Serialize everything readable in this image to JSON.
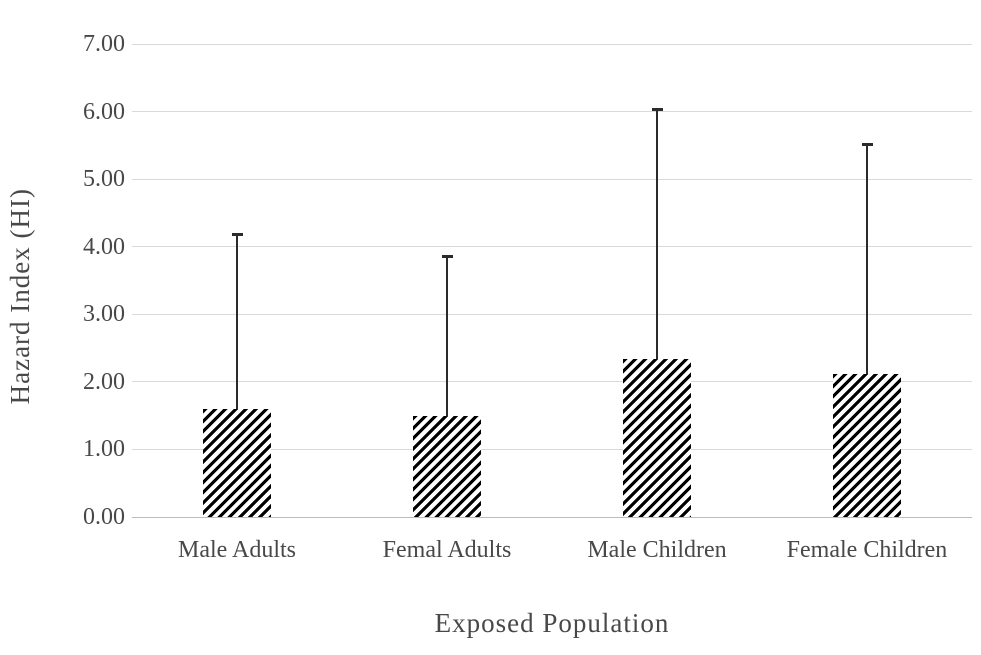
{
  "figure": {
    "background": "#ffffff"
  },
  "chart_data": {
    "type": "bar",
    "title": "",
    "xlabel": "Exposed Population",
    "ylabel": "Hazard Index (HI)",
    "categories": [
      "Male Adults",
      "Femal Adults",
      "Male Children",
      "Female Children"
    ],
    "values": [
      1.6,
      1.49,
      2.34,
      2.12
    ],
    "upper_errors": [
      2.58,
      2.36,
      3.69,
      3.4
    ],
    "error_bar_tops": [
      4.18,
      3.85,
      6.03,
      5.52
    ],
    "ylim": [
      0,
      7
    ],
    "ytick_step": 1,
    "ytick_labels": [
      "0.00",
      "1.00",
      "2.00",
      "3.00",
      "4.00",
      "5.00",
      "6.00",
      "7.00"
    ],
    "grid": "horizontal-major",
    "legend": "none",
    "bar_fill": "black-diagonal-hatch",
    "error_bars": "upper-only-with-cap",
    "colors": {
      "hatch": "#000000",
      "bar_background": "#ffffff",
      "gridline": "#d9d9d9",
      "axis_line": "#bcbcbc",
      "error_bar": "#2b2b2b",
      "text": "#484848"
    }
  }
}
